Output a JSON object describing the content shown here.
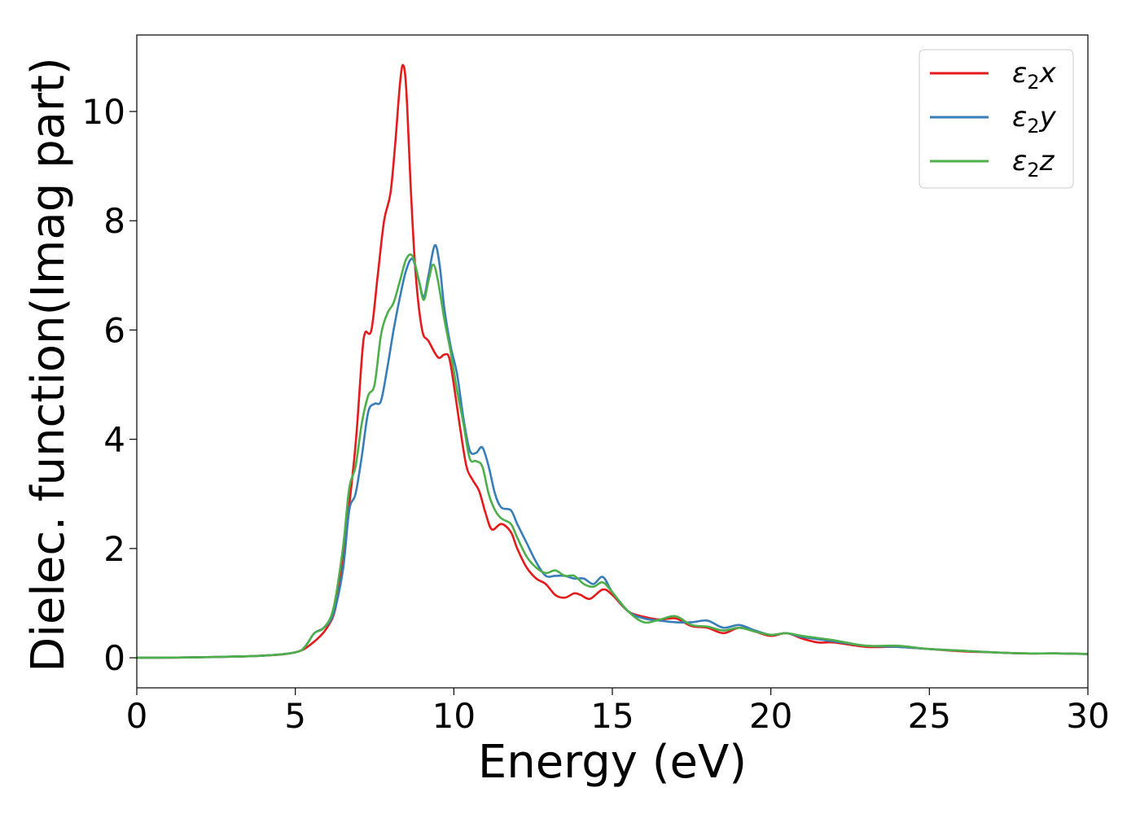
{
  "chart_data": {
    "type": "line",
    "title": "",
    "xlabel": "Energy (eV)",
    "ylabel": "Dielec. function(Imag part)",
    "xlim": [
      0,
      30
    ],
    "ylim": [
      -0.55,
      11.4
    ],
    "xticks": [
      0,
      5,
      10,
      15,
      20,
      25,
      30
    ],
    "yticks": [
      0,
      2,
      4,
      6,
      8,
      10
    ],
    "grid": false,
    "legend_position": "top-right",
    "series": [
      {
        "name": "ε₂x",
        "legend_base": "ε",
        "legend_sub": "2",
        "legend_suffix": "x",
        "color": "#e41a1c",
        "points": [
          [
            0,
            0
          ],
          [
            2,
            0.01
          ],
          [
            4,
            0.04
          ],
          [
            5,
            0.1
          ],
          [
            5.5,
            0.25
          ],
          [
            6,
            0.55
          ],
          [
            6.3,
            1.0
          ],
          [
            6.6,
            2.3
          ],
          [
            6.9,
            3.9
          ],
          [
            7.1,
            5.5
          ],
          [
            7.2,
            5.95
          ],
          [
            7.4,
            6.0
          ],
          [
            7.6,
            7.0
          ],
          [
            7.8,
            8.0
          ],
          [
            8.0,
            8.5
          ],
          [
            8.15,
            9.4
          ],
          [
            8.3,
            10.5
          ],
          [
            8.4,
            10.85
          ],
          [
            8.5,
            10.4
          ],
          [
            8.65,
            8.5
          ],
          [
            8.8,
            7.0
          ],
          [
            9.0,
            6.0
          ],
          [
            9.2,
            5.8
          ],
          [
            9.5,
            5.5
          ],
          [
            9.7,
            5.55
          ],
          [
            9.85,
            5.5
          ],
          [
            10.0,
            5.0
          ],
          [
            10.2,
            4.2
          ],
          [
            10.4,
            3.5
          ],
          [
            10.6,
            3.25
          ],
          [
            10.8,
            3.05
          ],
          [
            11.0,
            2.65
          ],
          [
            11.2,
            2.35
          ],
          [
            11.5,
            2.45
          ],
          [
            11.8,
            2.3
          ],
          [
            12.0,
            2.0
          ],
          [
            12.3,
            1.65
          ],
          [
            12.6,
            1.45
          ],
          [
            12.9,
            1.35
          ],
          [
            13.2,
            1.15
          ],
          [
            13.5,
            1.1
          ],
          [
            13.8,
            1.18
          ],
          [
            14.0,
            1.15
          ],
          [
            14.3,
            1.08
          ],
          [
            14.7,
            1.25
          ],
          [
            15.0,
            1.15
          ],
          [
            15.5,
            0.85
          ],
          [
            16.0,
            0.75
          ],
          [
            16.5,
            0.7
          ],
          [
            17.0,
            0.72
          ],
          [
            17.5,
            0.58
          ],
          [
            18.0,
            0.55
          ],
          [
            18.5,
            0.45
          ],
          [
            19.0,
            0.55
          ],
          [
            19.5,
            0.48
          ],
          [
            20.0,
            0.4
          ],
          [
            20.5,
            0.45
          ],
          [
            21.0,
            0.35
          ],
          [
            21.5,
            0.28
          ],
          [
            22.0,
            0.28
          ],
          [
            23.0,
            0.2
          ],
          [
            24.0,
            0.2
          ],
          [
            25.0,
            0.16
          ],
          [
            26.0,
            0.12
          ],
          [
            27.0,
            0.1
          ],
          [
            28.0,
            0.08
          ],
          [
            29.0,
            0.08
          ],
          [
            30.0,
            0.07
          ]
        ]
      },
      {
        "name": "ε₂y",
        "legend_base": "ε",
        "legend_sub": "2",
        "legend_suffix": "y",
        "color": "#377eb8",
        "points": [
          [
            0,
            0
          ],
          [
            2,
            0.01
          ],
          [
            4,
            0.04
          ],
          [
            5,
            0.1
          ],
          [
            5.3,
            0.2
          ],
          [
            5.6,
            0.45
          ],
          [
            5.9,
            0.55
          ],
          [
            6.2,
            0.8
          ],
          [
            6.5,
            1.6
          ],
          [
            6.7,
            2.7
          ],
          [
            6.9,
            3.0
          ],
          [
            7.1,
            3.7
          ],
          [
            7.3,
            4.5
          ],
          [
            7.5,
            4.65
          ],
          [
            7.7,
            4.7
          ],
          [
            7.9,
            5.3
          ],
          [
            8.1,
            6.0
          ],
          [
            8.3,
            6.6
          ],
          [
            8.5,
            7.1
          ],
          [
            8.7,
            7.3
          ],
          [
            8.9,
            6.9
          ],
          [
            9.05,
            6.6
          ],
          [
            9.2,
            7.0
          ],
          [
            9.4,
            7.55
          ],
          [
            9.55,
            7.2
          ],
          [
            9.7,
            6.4
          ],
          [
            9.9,
            5.7
          ],
          [
            10.1,
            5.2
          ],
          [
            10.3,
            4.4
          ],
          [
            10.5,
            3.8
          ],
          [
            10.7,
            3.75
          ],
          [
            10.9,
            3.85
          ],
          [
            11.1,
            3.5
          ],
          [
            11.3,
            3.0
          ],
          [
            11.5,
            2.75
          ],
          [
            11.8,
            2.7
          ],
          [
            12.0,
            2.45
          ],
          [
            12.3,
            2.1
          ],
          [
            12.6,
            1.75
          ],
          [
            12.9,
            1.5
          ],
          [
            13.2,
            1.5
          ],
          [
            13.5,
            1.5
          ],
          [
            13.8,
            1.45
          ],
          [
            14.1,
            1.45
          ],
          [
            14.4,
            1.35
          ],
          [
            14.7,
            1.48
          ],
          [
            15.0,
            1.2
          ],
          [
            15.5,
            0.85
          ],
          [
            16.0,
            0.72
          ],
          [
            16.5,
            0.68
          ],
          [
            17.0,
            0.65
          ],
          [
            17.5,
            0.65
          ],
          [
            18.0,
            0.68
          ],
          [
            18.5,
            0.55
          ],
          [
            19.0,
            0.6
          ],
          [
            19.5,
            0.5
          ],
          [
            20.0,
            0.42
          ],
          [
            20.5,
            0.45
          ],
          [
            21.0,
            0.38
          ],
          [
            22.0,
            0.3
          ],
          [
            23.0,
            0.22
          ],
          [
            24.0,
            0.2
          ],
          [
            25.0,
            0.16
          ],
          [
            26.0,
            0.13
          ],
          [
            27.0,
            0.1
          ],
          [
            28.0,
            0.08
          ],
          [
            29.0,
            0.08
          ],
          [
            30.0,
            0.07
          ]
        ]
      },
      {
        "name": "ε₂z",
        "legend_base": "ε",
        "legend_sub": "2",
        "legend_suffix": "z",
        "color": "#4daf4a",
        "points": [
          [
            0,
            0
          ],
          [
            2,
            0.01
          ],
          [
            4,
            0.04
          ],
          [
            5,
            0.1
          ],
          [
            5.3,
            0.2
          ],
          [
            5.6,
            0.45
          ],
          [
            5.9,
            0.55
          ],
          [
            6.2,
            0.9
          ],
          [
            6.5,
            2.0
          ],
          [
            6.7,
            3.1
          ],
          [
            6.9,
            3.5
          ],
          [
            7.1,
            4.3
          ],
          [
            7.3,
            4.8
          ],
          [
            7.5,
            5.0
          ],
          [
            7.7,
            5.9
          ],
          [
            7.9,
            6.3
          ],
          [
            8.1,
            6.5
          ],
          [
            8.3,
            6.9
          ],
          [
            8.5,
            7.3
          ],
          [
            8.7,
            7.35
          ],
          [
            8.9,
            6.9
          ],
          [
            9.05,
            6.55
          ],
          [
            9.2,
            6.9
          ],
          [
            9.35,
            7.2
          ],
          [
            9.5,
            6.9
          ],
          [
            9.7,
            6.2
          ],
          [
            9.9,
            5.6
          ],
          [
            10.1,
            4.9
          ],
          [
            10.3,
            4.3
          ],
          [
            10.5,
            3.65
          ],
          [
            10.7,
            3.6
          ],
          [
            10.9,
            3.5
          ],
          [
            11.1,
            3.0
          ],
          [
            11.3,
            2.7
          ],
          [
            11.5,
            2.55
          ],
          [
            11.8,
            2.45
          ],
          [
            12.0,
            2.2
          ],
          [
            12.3,
            1.85
          ],
          [
            12.6,
            1.65
          ],
          [
            12.9,
            1.55
          ],
          [
            13.2,
            1.6
          ],
          [
            13.5,
            1.5
          ],
          [
            13.8,
            1.5
          ],
          [
            14.1,
            1.35
          ],
          [
            14.4,
            1.3
          ],
          [
            14.7,
            1.38
          ],
          [
            15.0,
            1.2
          ],
          [
            15.5,
            0.85
          ],
          [
            16.0,
            0.65
          ],
          [
            16.5,
            0.7
          ],
          [
            17.0,
            0.76
          ],
          [
            17.5,
            0.6
          ],
          [
            18.0,
            0.57
          ],
          [
            18.5,
            0.5
          ],
          [
            19.0,
            0.55
          ],
          [
            19.5,
            0.48
          ],
          [
            20.0,
            0.42
          ],
          [
            20.5,
            0.45
          ],
          [
            21.0,
            0.4
          ],
          [
            22.0,
            0.32
          ],
          [
            23.0,
            0.22
          ],
          [
            24.0,
            0.22
          ],
          [
            25.0,
            0.16
          ],
          [
            26.0,
            0.13
          ],
          [
            27.0,
            0.1
          ],
          [
            28.0,
            0.08
          ],
          [
            29.0,
            0.08
          ],
          [
            30.0,
            0.07
          ]
        ]
      }
    ]
  }
}
